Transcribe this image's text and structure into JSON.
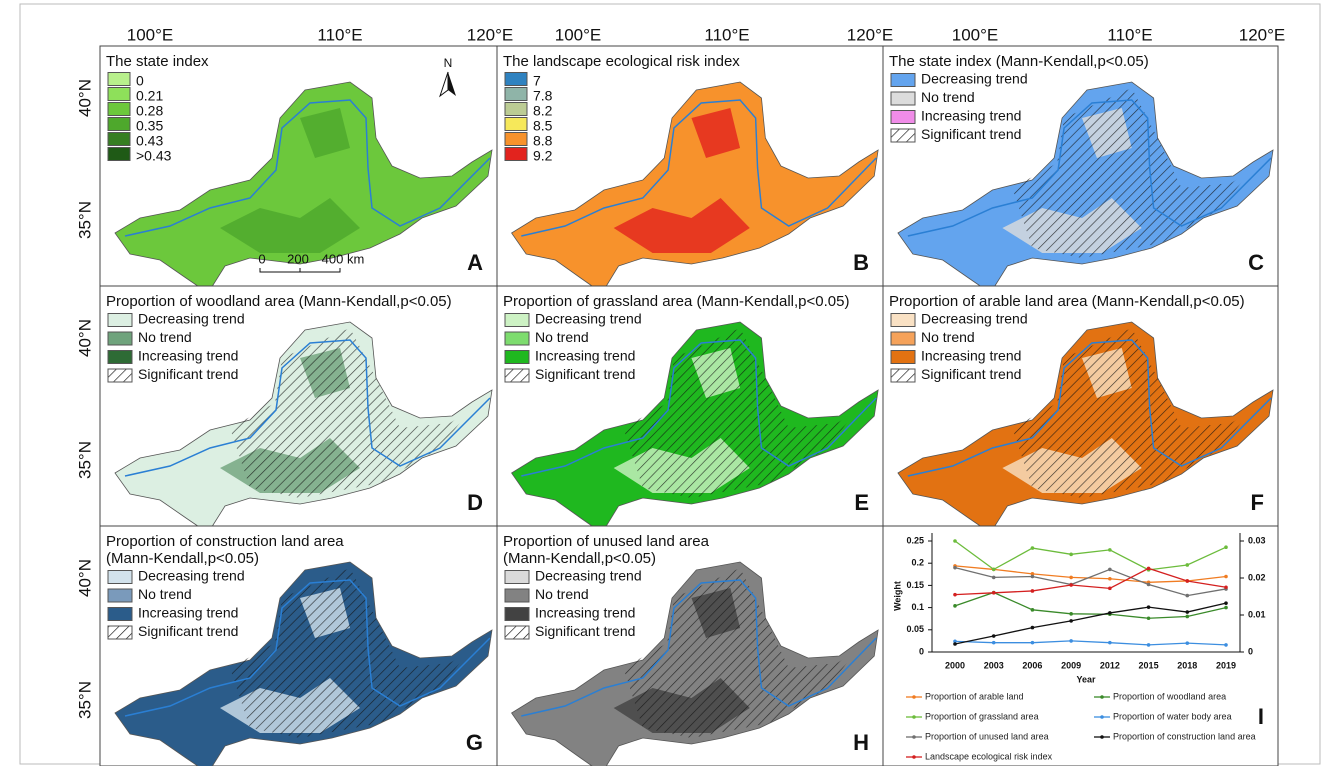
{
  "lon_labels": [
    "100°E",
    "110°E",
    "120°E"
  ],
  "lat_labels": [
    "40°N",
    "35°N"
  ],
  "north": "N",
  "scale_bar": [
    "0",
    "200",
    "400 km"
  ],
  "panels": [
    {
      "letter": "A",
      "title": [
        "The state index"
      ],
      "legend": [
        {
          "label": "0",
          "color": "#b8f08c"
        },
        {
          "label": "0.21",
          "color": "#8ee05a"
        },
        {
          "label": "0.28",
          "color": "#6cc83c"
        },
        {
          "label": "0.35",
          "color": "#4ea82c"
        },
        {
          "label": "0.43",
          "color": "#367e22"
        },
        {
          "label": ">0.43",
          "color": "#1f5a16"
        }
      ]
    },
    {
      "letter": "B",
      "title": [
        "The landscape ecological risk index"
      ],
      "legend": [
        {
          "label": "7",
          "color": "#2f82c0"
        },
        {
          "label": "7.8",
          "color": "#8fb4a8"
        },
        {
          "label": "8.2",
          "color": "#bccc94"
        },
        {
          "label": "8.5",
          "color": "#f6e85a"
        },
        {
          "label": "8.8",
          "color": "#f7922c"
        },
        {
          "label": "9.2",
          "color": "#e2231e"
        }
      ]
    },
    {
      "letter": "C",
      "title": [
        "The state index (Mann-Kendall,p<0.05)"
      ],
      "legend": [
        {
          "label": "Decreasing trend",
          "color": "#63a4ee"
        },
        {
          "label": "No trend",
          "color": "#dcdcdc"
        },
        {
          "label": "Increasing trend",
          "color": "#f08ce8"
        }
      ],
      "significant": "Significant trend"
    },
    {
      "letter": "D",
      "title": [
        "Proportion of woodland area (Mann-Kendall,p<0.05)"
      ],
      "legend": [
        {
          "label": "Decreasing trend",
          "color": "#dcefe2"
        },
        {
          "label": "No trend",
          "color": "#6fa37c"
        },
        {
          "label": "Increasing trend",
          "color": "#2e6b35"
        }
      ],
      "significant": "Significant trend"
    },
    {
      "letter": "E",
      "title": [
        "Proportion of grassland area (Mann-Kendall,p<0.05)"
      ],
      "legend": [
        {
          "label": "Decreasing trend",
          "color": "#cdf2c4"
        },
        {
          "label": "No trend",
          "color": "#7ddc6e"
        },
        {
          "label": "Increasing trend",
          "color": "#1fb81f"
        }
      ],
      "significant": "Significant trend"
    },
    {
      "letter": "F",
      "title": [
        "Proportion of arable land area (Mann-Kendall,p<0.05)"
      ],
      "legend": [
        {
          "label": "Decreasing trend",
          "color": "#f9e1c4"
        },
        {
          "label": "No trend",
          "color": "#f5a25a"
        },
        {
          "label": "Increasing trend",
          "color": "#e27212"
        }
      ],
      "significant": "Significant trend"
    },
    {
      "letter": "G",
      "title": [
        "Proportion of construction land area",
        "(Mann-Kendall,p<0.05)"
      ],
      "legend": [
        {
          "label": "Decreasing trend",
          "color": "#d2e2ec"
        },
        {
          "label": "No trend",
          "color": "#7a9abb"
        },
        {
          "label": "Increasing trend",
          "color": "#2b5c8a"
        }
      ],
      "significant": "Significant trend"
    },
    {
      "letter": "H",
      "title": [
        "Proportion of unused land area",
        "(Mann-Kendall,p<0.05)"
      ],
      "legend": [
        {
          "label": "Decreasing trend",
          "color": "#dadada"
        },
        {
          "label": "No trend",
          "color": "#828282"
        },
        {
          "label": "Increasing trend",
          "color": "#424242"
        }
      ],
      "significant": "Significant trend"
    }
  ],
  "chart_data": {
    "type": "line",
    "letter": "I",
    "ylabel": "Weight",
    "xlabel": "Year",
    "categories": [
      "2000",
      "2003",
      "2006",
      "2009",
      "2012",
      "2015",
      "2018",
      "2019"
    ],
    "ylim": [
      0,
      0.25
    ],
    "yticks": [
      0,
      0.05,
      0.1,
      0.15,
      0.2,
      0.25
    ],
    "y2lim": [
      0,
      0.03
    ],
    "y2ticks": [
      0,
      0.01,
      0.02,
      0.03
    ],
    "series": [
      {
        "name": "Proportion of arable land",
        "color": "#f07c22",
        "values": [
          0.194,
          0.186,
          0.176,
          0.168,
          0.165,
          0.157,
          0.16,
          0.17
        ]
      },
      {
        "name": "Proportion of woodland area",
        "color": "#3a8a2a",
        "values": [
          0.104,
          0.134,
          0.095,
          0.086,
          0.085,
          0.076,
          0.08,
          0.1
        ]
      },
      {
        "name": "Proportion of grassland area",
        "color": "#6cbc3c",
        "values": [
          0.25,
          0.186,
          0.234,
          0.22,
          0.23,
          0.185,
          0.196,
          0.236
        ]
      },
      {
        "name": "Proportion of water body area",
        "color": "#3c8ee0",
        "values": [
          0.024,
          0.021,
          0.021,
          0.025,
          0.021,
          0.016,
          0.02,
          0.016
        ]
      },
      {
        "name": "Proportion of unused land area",
        "color": "#707070",
        "values": [
          0.19,
          0.168,
          0.17,
          0.152,
          0.186,
          0.152,
          0.127,
          0.142
        ]
      },
      {
        "name": "Proportion of construction land area",
        "color": "#111111",
        "values": [
          0.018,
          0.036,
          0.055,
          0.07,
          0.088,
          0.101,
          0.09,
          0.11
        ]
      },
      {
        "name": "Landscape ecological risk index",
        "color": "#d42020",
        "axis": "y2",
        "values": [
          0.0155,
          0.016,
          0.0165,
          0.0181,
          0.0172,
          0.0226,
          0.0192,
          0.0175
        ]
      }
    ]
  }
}
